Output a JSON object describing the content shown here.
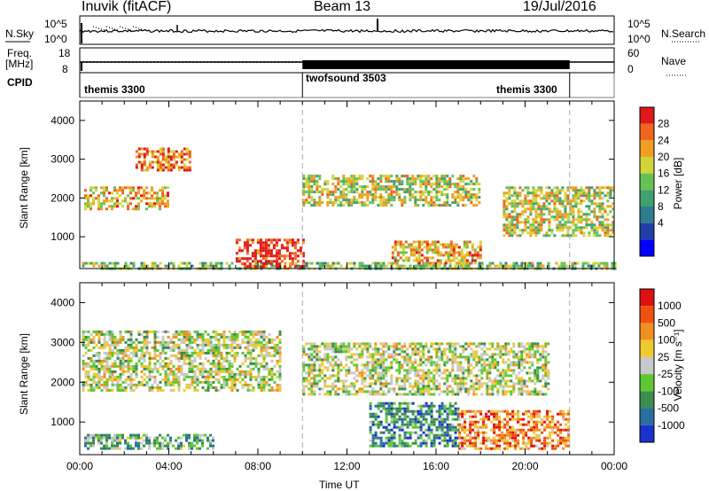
{
  "header": {
    "station": "Inuvik (fitACF)",
    "beam": "Beam 13",
    "date": "19/Jul/2016"
  },
  "status_panels": {
    "nsky_label": "N.Sky",
    "nsearch_label": "N.Search",
    "nsky_ticks": [
      "10^5",
      "10^0"
    ],
    "nsearch_ticks": [
      "10^5",
      "10^0"
    ],
    "freq_label_1": "Freq.",
    "freq_label_2": "[MHz]",
    "freq_ticks": [
      "18",
      "8"
    ],
    "nave_label": "Nave",
    "nave_ticks": [
      "60",
      "0"
    ],
    "cpid_label": "CPID",
    "cpid_segments": [
      {
        "name": "themis 3300",
        "start": 0,
        "end": 10
      },
      {
        "name": "twofsound 3503",
        "start": 10,
        "end": 22
      },
      {
        "name": "themis 3300",
        "start": 22,
        "end": 24
      }
    ]
  },
  "chart_data": [
    {
      "type": "heatmap",
      "name": "power",
      "ylabel": "Slant Range [km]",
      "xlabel": "",
      "ylim": [
        180,
        4500
      ],
      "xlim": [
        0,
        24
      ],
      "yticks": [
        1000,
        2000,
        3000,
        4000
      ],
      "colorbar": {
        "label": "Power [dB]",
        "ticks": [
          "28",
          "24",
          "20",
          "16",
          "12",
          "8",
          "4"
        ],
        "colors": [
          "#0000ff",
          "#1f3ea6",
          "#2f7d8c",
          "#3fa070",
          "#66c254",
          "#d4d43a",
          "#f0a020",
          "#f06420",
          "#e01818"
        ]
      },
      "bands": [
        {
          "x0": 0.1,
          "x1": 24,
          "y0": 200,
          "y1": 350,
          "level": 0.5
        },
        {
          "x0": 7.0,
          "x1": 10.0,
          "y0": 250,
          "y1": 950,
          "level": 0.95
        },
        {
          "x0": 0.2,
          "x1": 4.0,
          "y0": 1700,
          "y1": 2300,
          "level": 0.7
        },
        {
          "x0": 2.5,
          "x1": 5.0,
          "y0": 2700,
          "y1": 3300,
          "level": 0.8
        },
        {
          "x0": 10,
          "x1": 18,
          "y0": 1800,
          "y1": 2600,
          "level": 0.6
        },
        {
          "x0": 14,
          "x1": 18,
          "y0": 300,
          "y1": 900,
          "level": 0.7
        },
        {
          "x0": 19,
          "x1": 24,
          "y0": 1000,
          "y1": 2300,
          "level": 0.6
        }
      ]
    },
    {
      "type": "heatmap",
      "name": "velocity",
      "ylabel": "Slant Range [km]",
      "xlabel": "Time UT",
      "ylim": [
        180,
        4500
      ],
      "xlim": [
        0,
        24
      ],
      "yticks": [
        1000,
        2000,
        3000,
        4000
      ],
      "xticks": [
        "00:00",
        "04:00",
        "08:00",
        "12:00",
        "16:00",
        "20:00",
        "00:00"
      ],
      "colorbar": {
        "label": "Velocity [m s⁻¹]",
        "ticks": [
          "1000",
          "500",
          "100",
          "25",
          "-25",
          "-100",
          "-500",
          "-1000"
        ],
        "colors": [
          "#1a32c8",
          "#2a6ea0",
          "#3c8c50",
          "#5cc832",
          "#c8c8c8",
          "#f0c830",
          "#f09020",
          "#f05010",
          "#e01010"
        ]
      },
      "bands": [
        {
          "x0": 0.1,
          "x1": 9.0,
          "y0": 1800,
          "y1": 3300,
          "level": 0.5
        },
        {
          "x0": 0.2,
          "x1": 6.0,
          "y0": 300,
          "y1": 700,
          "level": 0.35
        },
        {
          "x0": 10,
          "x1": 21,
          "y0": 1700,
          "y1": 3000,
          "level": 0.5
        },
        {
          "x0": 13,
          "x1": 17,
          "y0": 400,
          "y1": 1500,
          "level": 0.25
        },
        {
          "x0": 17,
          "x1": 22,
          "y0": 300,
          "y1": 1300,
          "level": 0.75
        }
      ]
    }
  ],
  "axis": {
    "xlabel": "Time UT"
  }
}
